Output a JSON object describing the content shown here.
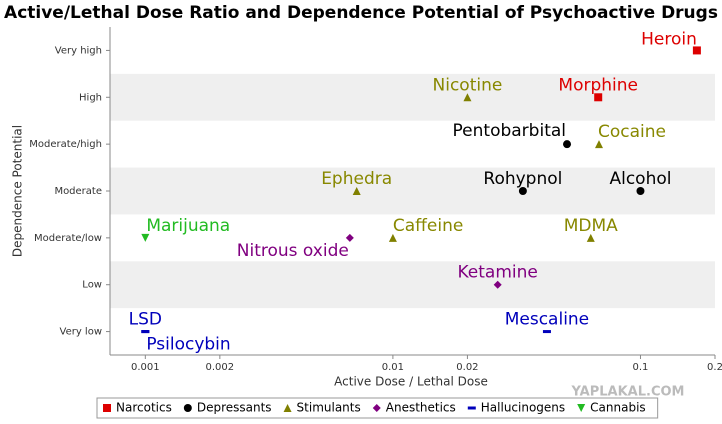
{
  "chart_data": {
    "type": "scatter",
    "title": "Active/Lethal Dose Ratio and Dependence Potential of Psychoactive Drugs",
    "x_label": "Active Dose / Lethal Dose",
    "y_label": "Dependence Potential",
    "watermark": "YAPLAKAL.COM",
    "x_scale": "log",
    "xlim": [
      0.00072,
      0.2
    ],
    "xticks": [
      0.001,
      0.002,
      0.01,
      0.02,
      0.1,
      0.2
    ],
    "categories": [
      "Very low",
      "Low",
      "Moderate/low",
      "Moderate",
      "Moderate/high",
      "High",
      "Very high"
    ],
    "legend": "bottom",
    "series": [
      {
        "name": "Narcotics",
        "color": "#dd0000",
        "marker": "square",
        "x": [
          0.169,
          0.0675
        ],
        "values": [
          "Very high",
          "High"
        ],
        "labels": [
          "Heroin",
          "Morphine"
        ]
      },
      {
        "name": "Depressants",
        "color": "#000000",
        "marker": "circle",
        "x": [
          0.0505,
          0.0335,
          0.1
        ],
        "values": [
          "Moderate/high",
          "Moderate",
          "Moderate"
        ],
        "labels": [
          "Pentobarbital",
          "Rohypnol",
          "Alcohol"
        ]
      },
      {
        "name": "Stimulants",
        "color": "#808000",
        "marker": "triangle",
        "x": [
          0.02,
          0.068,
          0.00714,
          0.01,
          0.063
        ],
        "values": [
          "High",
          "Moderate/high",
          "Moderate",
          "Moderate/low",
          "Moderate/low"
        ],
        "labels": [
          "Nicotine",
          "Cocaine",
          "Ephedra",
          "Caffeine",
          "MDMA"
        ]
      },
      {
        "name": "Anesthetics",
        "color": "#800080",
        "marker": "diamond",
        "x": [
          0.0067,
          0.0265
        ],
        "values": [
          "Moderate/low",
          "Low"
        ],
        "labels": [
          "Nitrous oxide",
          "Ketamine"
        ]
      },
      {
        "name": "Hallucinogens",
        "color": "#0000bb",
        "marker": "bar",
        "x": [
          0.0419,
          0.001,
          0.001
        ],
        "values": [
          "Very low",
          "Very low",
          "Very low"
        ],
        "labels": [
          "Mescaline",
          "LSD",
          "Psilocybin"
        ]
      },
      {
        "name": "Cannabis",
        "color": "#22bb22",
        "marker": "triangle-down",
        "x": [
          0.001
        ],
        "values": [
          "Moderate/low"
        ],
        "labels": [
          "Marijuana"
        ]
      }
    ]
  }
}
